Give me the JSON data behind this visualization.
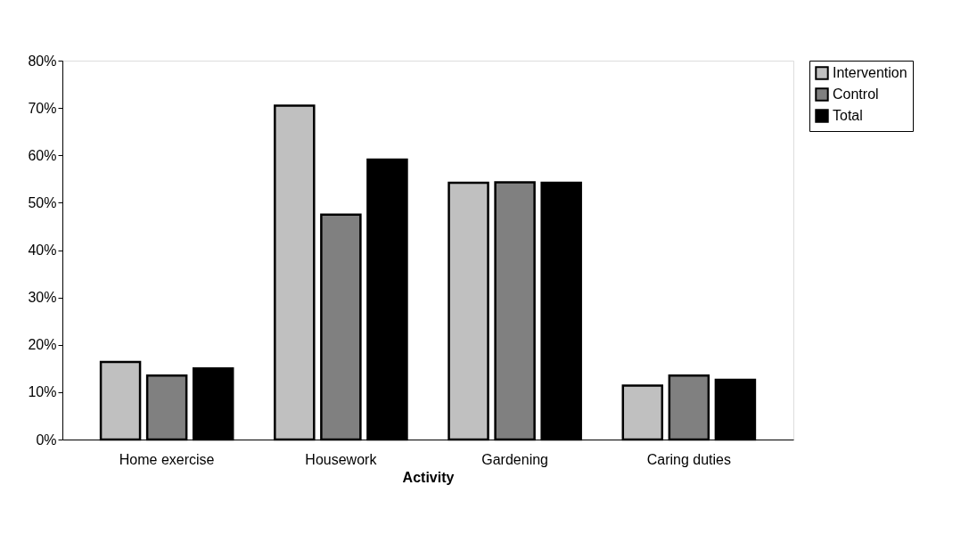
{
  "chart_data": {
    "type": "bar",
    "xlabel": "Activity",
    "categories": [
      "Home exercise",
      "Housework",
      "Gardening",
      "Caring duties"
    ],
    "series": [
      {
        "name": "Intervention",
        "color": "#c0c0c0",
        "values": [
          16.4,
          70.5,
          54.2,
          11.4
        ]
      },
      {
        "name": "Control",
        "color": "#808080",
        "values": [
          13.5,
          47.5,
          54.3,
          13.5
        ]
      },
      {
        "name": "Total",
        "color": "#000000",
        "values": [
          15.0,
          59.1,
          54.2,
          12.6
        ]
      }
    ],
    "ylim": [
      0,
      80
    ],
    "yticks": [
      {
        "value": 0,
        "label": "0%"
      },
      {
        "value": 10,
        "label": "10%"
      },
      {
        "value": 20,
        "label": "20%"
      },
      {
        "value": 30,
        "label": "30%"
      },
      {
        "value": 40,
        "label": "40%"
      },
      {
        "value": 50,
        "label": "50%"
      },
      {
        "value": 60,
        "label": "60%"
      },
      {
        "value": 70,
        "label": "70%"
      },
      {
        "value": 80,
        "label": "80%"
      }
    ],
    "grid": false,
    "legend": "right"
  }
}
